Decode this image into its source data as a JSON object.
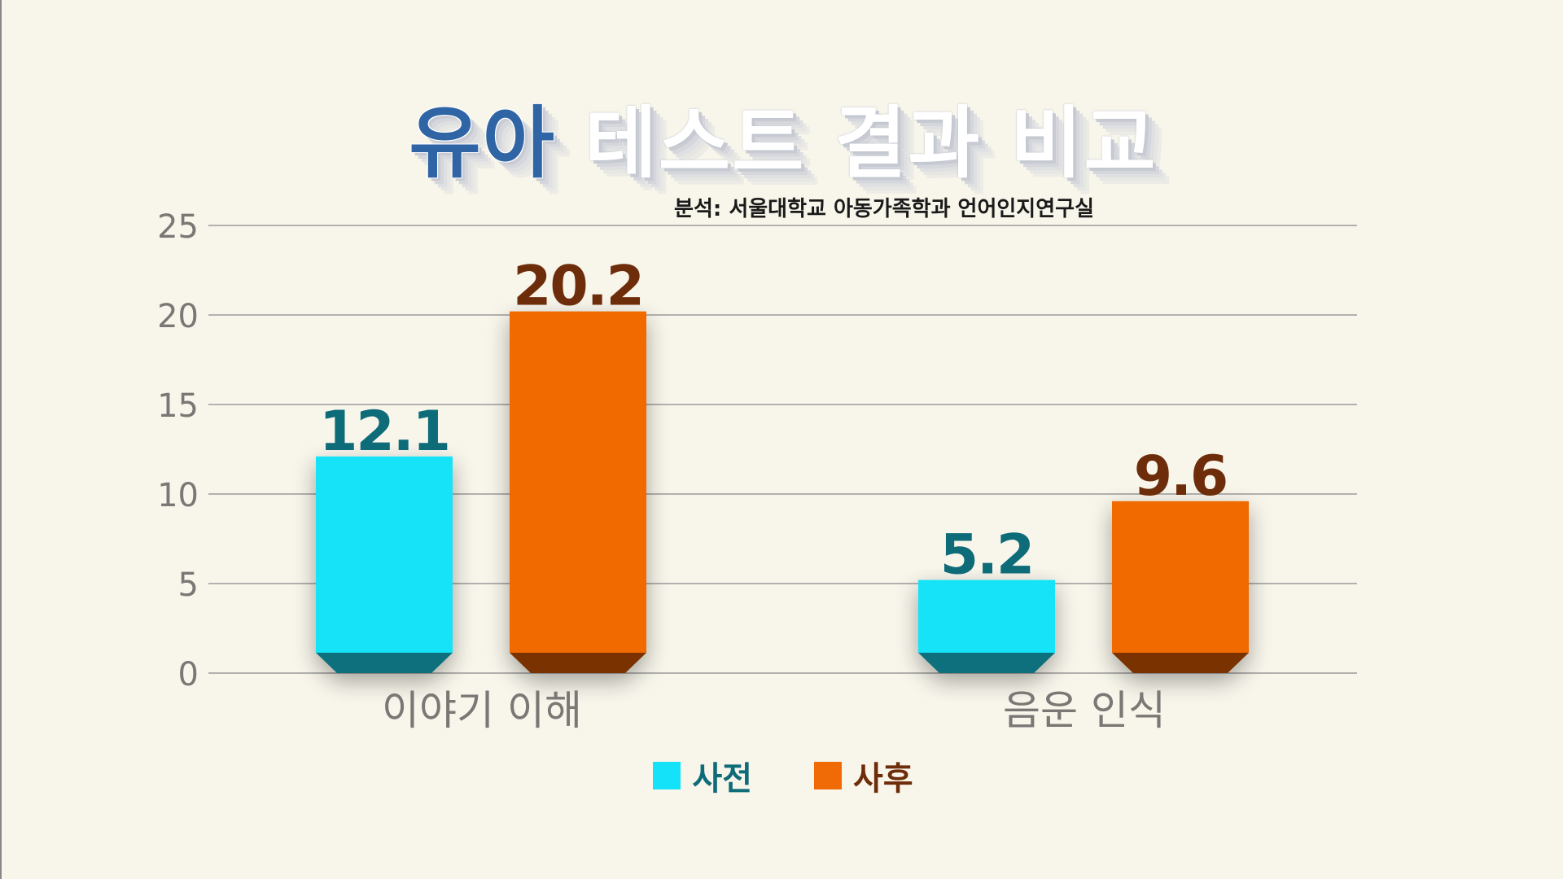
{
  "title": {
    "part1": "유아",
    "part2": "테스트 결과 비교"
  },
  "subtitle": "분석: 서울대학교 아동가족학과 언어인지연구실",
  "colors": {
    "pre": "#14e2f8",
    "pre_dark": "#08707c",
    "pre_label": "#0e6b78",
    "post": "#f06a05",
    "post_dark": "#7a3205",
    "post_label": "#6e2d0a",
    "grid": "#9a9a9a",
    "axis_text": "#7a7775",
    "background": "#f8f6eb"
  },
  "chart_data": {
    "type": "bar",
    "categories": [
      "이야기 이해",
      "음운 인식"
    ],
    "series": [
      {
        "name": "사전",
        "values": [
          12.1,
          5.2
        ]
      },
      {
        "name": "사후",
        "values": [
          20.2,
          9.6
        ]
      }
    ],
    "ylim": [
      0,
      25
    ],
    "yticks": [
      0,
      5,
      10,
      15,
      20,
      25
    ],
    "grid": true,
    "legend_position": "bottom",
    "data_labels": [
      "12.1",
      "20.2",
      "5.2",
      "9.6"
    ]
  },
  "legend": {
    "items": [
      {
        "label": "사전"
      },
      {
        "label": "사후"
      }
    ]
  }
}
